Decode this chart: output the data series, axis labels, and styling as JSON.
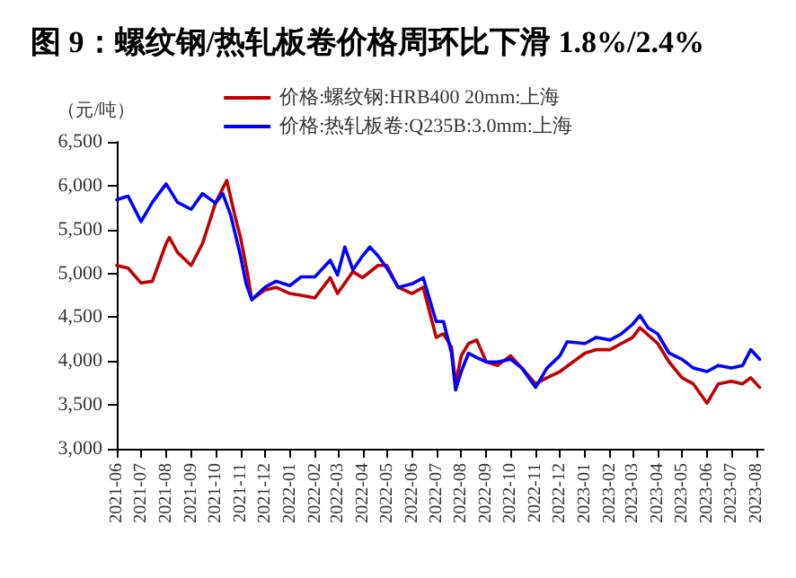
{
  "chart_data": {
    "type": "line",
    "title": "图 9：螺纹钢/热轧板卷价格周环比下滑 1.8%/2.4%",
    "ylabel": "（元/吨）",
    "xlim": [
      "2021-06-01",
      "2023-08-10"
    ],
    "xticks": [
      "2021-06",
      "2021-07",
      "2021-08",
      "2021-09",
      "2021-10",
      "2021-11",
      "2021-12",
      "2022-01",
      "2022-02",
      "2022-03",
      "2022-04",
      "2022-05",
      "2022-06",
      "2022-07",
      "2022-08",
      "2022-09",
      "2022-10",
      "2022-11",
      "2022-12",
      "2023-01",
      "2023-02",
      "2023-03",
      "2023-04",
      "2023-05",
      "2023-06",
      "2023-07",
      "2023-08"
    ],
    "ylim": [
      3000,
      6500
    ],
    "yticks": [
      {
        "value": 3000,
        "label": "3,000"
      },
      {
        "value": 3500,
        "label": "3,500"
      },
      {
        "value": 4000,
        "label": "4,000"
      },
      {
        "value": 4500,
        "label": "4,500"
      },
      {
        "value": 5000,
        "label": "5,000"
      },
      {
        "value": 5500,
        "label": "5,500"
      },
      {
        "value": 6000,
        "label": "6,000"
      },
      {
        "value": 6500,
        "label": "6,500"
      }
    ],
    "grid": false,
    "legend": "top",
    "marker": "none",
    "line_style": "solid",
    "series": [
      {
        "name": "价格:螺纹钢:HRB400 20mm:上海",
        "color": "#c00000",
        "x": [
          "2021-06-01",
          "2021-06-15",
          "2021-07-01",
          "2021-07-15",
          "2021-08-01",
          "2021-08-05",
          "2021-08-15",
          "2021-09-01",
          "2021-09-15",
          "2021-10-01",
          "2021-10-15",
          "2021-10-25",
          "2021-11-01",
          "2021-11-10",
          "2021-11-15",
          "2021-12-01",
          "2021-12-15",
          "2022-01-01",
          "2022-01-15",
          "2022-02-01",
          "2022-02-20",
          "2022-03-01",
          "2022-03-20",
          "2022-04-01",
          "2022-04-20",
          "2022-05-01",
          "2022-05-15",
          "2022-06-01",
          "2022-06-15",
          "2022-07-01",
          "2022-07-10",
          "2022-07-20",
          "2022-07-25",
          "2022-08-01",
          "2022-08-10",
          "2022-08-20",
          "2022-09-01",
          "2022-09-15",
          "2022-10-01",
          "2022-10-15",
          "2022-11-01",
          "2022-11-15",
          "2022-12-01",
          "2023-01-01",
          "2023-01-15",
          "2023-02-01",
          "2023-02-15",
          "2023-03-01",
          "2023-03-10",
          "2023-04-01",
          "2023-04-15",
          "2023-05-01",
          "2023-05-15",
          "2023-06-01",
          "2023-06-15",
          "2023-07-01",
          "2023-07-15",
          "2023-07-25",
          "2023-08-05"
        ],
        "values": [
          5090,
          5060,
          4890,
          4910,
          5340,
          5410,
          5240,
          5090,
          5340,
          5800,
          6060,
          5660,
          5410,
          4980,
          4700,
          4810,
          4840,
          4770,
          4750,
          4720,
          4950,
          4770,
          5020,
          4950,
          5090,
          5090,
          4840,
          4770,
          4840,
          4270,
          4310,
          4160,
          3740,
          4060,
          4200,
          4240,
          3990,
          3950,
          4060,
          3920,
          3740,
          3810,
          3880,
          4090,
          4130,
          4130,
          4200,
          4270,
          4380,
          4200,
          3990,
          3810,
          3740,
          3520,
          3740,
          3770,
          3740,
          3810,
          3700
        ]
      },
      {
        "name": "价格:热轧板卷:Q235B:3.0mm:上海",
        "color": "#0000ff",
        "x": [
          "2021-06-01",
          "2021-06-15",
          "2021-07-01",
          "2021-07-15",
          "2021-08-01",
          "2021-08-15",
          "2021-09-01",
          "2021-09-15",
          "2021-10-01",
          "2021-10-10",
          "2021-10-20",
          "2021-11-01",
          "2021-11-08",
          "2021-11-15",
          "2021-12-01",
          "2021-12-15",
          "2022-01-01",
          "2022-01-15",
          "2022-02-01",
          "2022-02-20",
          "2022-03-01",
          "2022-03-10",
          "2022-03-20",
          "2022-04-01",
          "2022-04-10",
          "2022-04-20",
          "2022-05-01",
          "2022-05-15",
          "2022-06-01",
          "2022-06-15",
          "2022-07-01",
          "2022-07-10",
          "2022-07-20",
          "2022-07-25",
          "2022-08-01",
          "2022-08-10",
          "2022-08-20",
          "2022-09-01",
          "2022-09-15",
          "2022-10-01",
          "2022-10-15",
          "2022-11-01",
          "2022-11-15",
          "2022-12-01",
          "2022-12-10",
          "2023-01-01",
          "2023-01-15",
          "2023-02-01",
          "2023-02-15",
          "2023-03-01",
          "2023-03-10",
          "2023-03-20",
          "2023-04-01",
          "2023-04-15",
          "2023-05-01",
          "2023-05-15",
          "2023-06-01",
          "2023-06-15",
          "2023-07-01",
          "2023-07-15",
          "2023-07-25",
          "2023-08-05"
        ],
        "values": [
          5840,
          5880,
          5590,
          5810,
          6020,
          5810,
          5730,
          5910,
          5800,
          5910,
          5660,
          5200,
          4880,
          4700,
          4840,
          4910,
          4860,
          4960,
          4960,
          5150,
          4980,
          5300,
          5040,
          5200,
          5300,
          5200,
          5060,
          4840,
          4880,
          4950,
          4450,
          4450,
          4090,
          3670,
          3880,
          4090,
          4040,
          3990,
          3990,
          4020,
          3920,
          3700,
          3920,
          4060,
          4220,
          4200,
          4270,
          4240,
          4310,
          4420,
          4520,
          4380,
          4310,
          4090,
          4020,
          3920,
          3880,
          3950,
          3920,
          3950,
          4130,
          4020
        ]
      }
    ]
  }
}
